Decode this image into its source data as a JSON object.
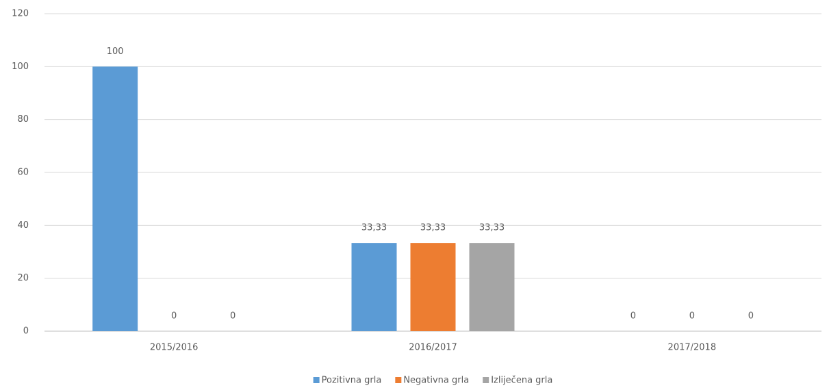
{
  "chart_data": {
    "type": "bar",
    "categories": [
      "2015/2016",
      "2016/2017",
      "2017/2018"
    ],
    "series": [
      {
        "name": "Pozitivna grla",
        "color": "#5b9bd5",
        "values": [
          100,
          33.33,
          0
        ],
        "value_labels": [
          "100",
          "33,33",
          "0"
        ]
      },
      {
        "name": "Negativna grla",
        "color": "#ed7d31",
        "values": [
          0,
          33.33,
          0
        ],
        "value_labels": [
          "0",
          "33,33",
          "0"
        ]
      },
      {
        "name": "Izliječena grla",
        "color": "#a5a5a5",
        "values": [
          0,
          33.33,
          0
        ],
        "value_labels": [
          "0",
          "33,33",
          "0"
        ]
      }
    ],
    "ylim": [
      0,
      120
    ],
    "yticks": [
      0,
      20,
      40,
      60,
      80,
      100,
      120
    ],
    "grid": true,
    "legend": "bottom"
  }
}
